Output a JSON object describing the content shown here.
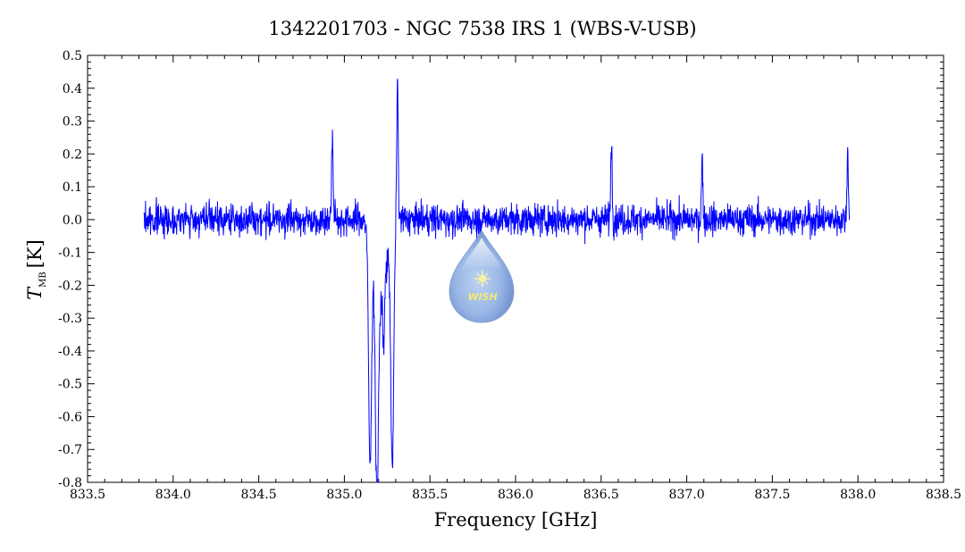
{
  "chart_data": {
    "type": "line",
    "title": "1342201703 - NGC 7538 IRS 1 (WBS-V-USB)",
    "xlabel": "Frequency [GHz]",
    "ylabel": {
      "main": "T",
      "sub": "MB",
      "unit": "[K]"
    },
    "xlim": [
      833.5,
      838.5
    ],
    "ylim": [
      -0.8,
      0.5
    ],
    "xticks": [
      833.5,
      834.0,
      834.5,
      835.0,
      835.5,
      836.0,
      836.5,
      837.0,
      837.5,
      838.0,
      838.5
    ],
    "yticks": [
      -0.8,
      -0.7,
      -0.6,
      -0.5,
      -0.4,
      -0.3,
      -0.2,
      -0.1,
      0.0,
      0.1,
      0.2,
      0.3,
      0.4,
      0.5
    ],
    "grid": false,
    "series": [
      {
        "color": "#0000ff",
        "x_range": [
          833.83,
          837.95
        ],
        "noise_rms": 0.04,
        "features": [
          {
            "x": 834.93,
            "y": 0.26
          },
          {
            "x": 835.15,
            "y": -0.7
          },
          {
            "x": 835.19,
            "y": -0.67
          },
          {
            "x": 835.23,
            "y": -0.2
          },
          {
            "x": 835.28,
            "y": -0.73
          },
          {
            "x": 835.31,
            "y": 0.43
          },
          {
            "x": 836.56,
            "y": 0.24
          },
          {
            "x": 837.09,
            "y": 0.18
          },
          {
            "x": 837.94,
            "y": 0.21
          }
        ]
      }
    ]
  },
  "logo": {
    "text": "WISH"
  }
}
